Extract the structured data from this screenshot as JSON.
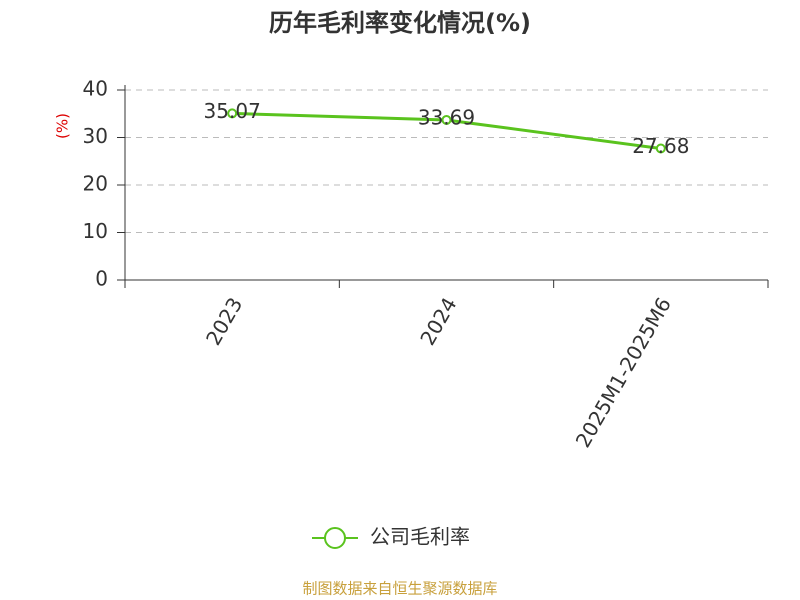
{
  "chart_data": {
    "type": "line",
    "title": "历年毛利率变化情况(%)",
    "y_label": "(%)",
    "categories": [
      "2023",
      "2024",
      "2025M1-2025M6"
    ],
    "series": [
      {
        "name": "公司毛利率",
        "color": "#5ac31e",
        "values": [
          35.07,
          33.69,
          27.68
        ]
      }
    ],
    "ylim": [
      0,
      40
    ],
    "yticks": [
      0,
      10,
      20,
      30,
      40
    ],
    "grid": true,
    "legend": "bottom",
    "source": "制图数据来自恒生聚源数据库"
  }
}
